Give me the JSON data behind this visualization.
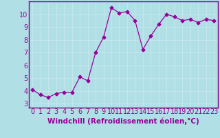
{
  "x": [
    0,
    1,
    2,
    3,
    4,
    5,
    6,
    7,
    8,
    9,
    10,
    11,
    12,
    13,
    14,
    15,
    16,
    17,
    18,
    19,
    20,
    21,
    22,
    23
  ],
  "y": [
    4.1,
    3.7,
    3.5,
    3.8,
    3.9,
    3.9,
    5.1,
    4.8,
    7.0,
    8.2,
    10.5,
    10.1,
    10.2,
    9.5,
    7.25,
    8.3,
    9.2,
    10.0,
    9.8,
    9.5,
    9.6,
    9.35,
    9.6,
    9.5
  ],
  "xlabel": "Windchill (Refroidissement éolien,°C)",
  "xlim": [
    -0.5,
    23.5
  ],
  "ylim": [
    2.7,
    11.0
  ],
  "yticks": [
    3,
    4,
    5,
    6,
    7,
    8,
    9,
    10
  ],
  "xticks": [
    0,
    1,
    2,
    3,
    4,
    5,
    6,
    7,
    8,
    9,
    10,
    11,
    12,
    13,
    14,
    15,
    16,
    17,
    18,
    19,
    20,
    21,
    22,
    23
  ],
  "line_color": "#990099",
  "marker": "D",
  "marker_size": 2.5,
  "bg_color": "#b0e0e6",
  "grid_color": "#c8e8ec",
  "xlabel_fontsize": 7.5,
  "tick_fontsize": 7,
  "spine_color": "#800080"
}
